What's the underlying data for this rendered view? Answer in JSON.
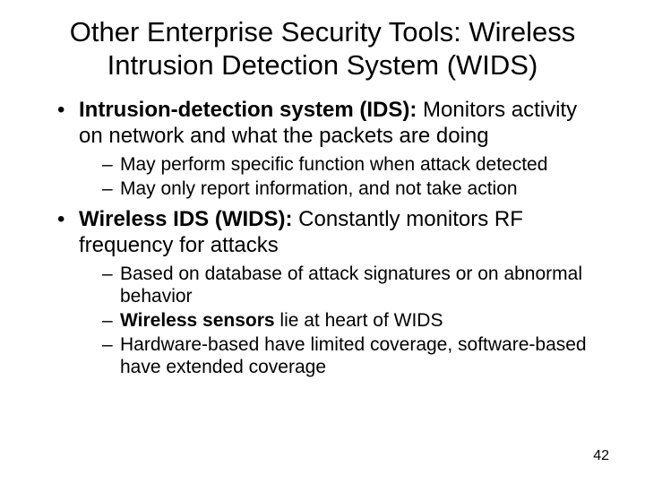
{
  "title": "Other Enterprise Security Tools: Wireless Intrusion Detection System (WIDS)",
  "bullets": [
    {
      "bold": "Intrusion-detection system (IDS):",
      "rest": " Monitors activity on network and what the packets are doing",
      "sub": [
        {
          "text": "May perform specific function when attack detected"
        },
        {
          "text": "May only report information, and not take action"
        }
      ]
    },
    {
      "bold": "Wireless IDS (WIDS):",
      "rest": " Constantly monitors RF frequency for attacks",
      "sub": [
        {
          "text": "Based on database of attack signatures or on abnormal behavior"
        },
        {
          "bold": "Wireless sensors",
          "rest": " lie at heart of WIDS"
        },
        {
          "text": "Hardware-based have limited coverage, software-based have extended coverage"
        }
      ]
    }
  ],
  "page_number": "42",
  "colors": {
    "background": "#ffffff",
    "text": "#000000"
  },
  "fonts": {
    "title_size_pt": 31,
    "bullet_size_pt": 24,
    "sub_size_pt": 21,
    "pagenum_size_pt": 16
  }
}
